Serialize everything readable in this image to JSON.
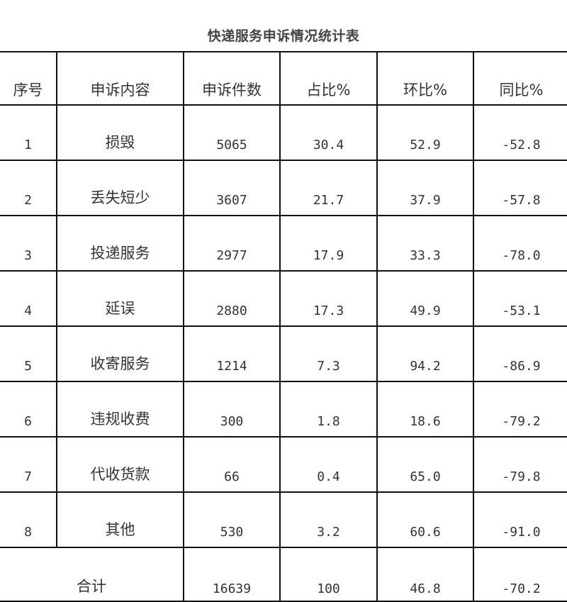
{
  "title": "快递服务申诉情况统计表",
  "headers": [
    "序号",
    "申诉内容",
    "申诉件数",
    "占比%",
    "环比%",
    "同比%"
  ],
  "rows": [
    {
      "idx": "1",
      "content": "损毁",
      "count": "5065",
      "share": "30.4",
      "mom": "52.9",
      "yoy": "-52.8"
    },
    {
      "idx": "2",
      "content": "丢失短少",
      "count": "3607",
      "share": "21.7",
      "mom": "37.9",
      "yoy": "-57.8"
    },
    {
      "idx": "3",
      "content": "投递服务",
      "count": "2977",
      "share": "17.9",
      "mom": "33.3",
      "yoy": "-78.0"
    },
    {
      "idx": "4",
      "content": "延误",
      "count": "2880",
      "share": "17.3",
      "mom": "49.9",
      "yoy": "-53.1"
    },
    {
      "idx": "5",
      "content": "收寄服务",
      "count": "1214",
      "share": "7.3",
      "mom": "94.2",
      "yoy": "-86.9"
    },
    {
      "idx": "6",
      "content": "违规收费",
      "count": "300",
      "share": "1.8",
      "mom": "18.6",
      "yoy": "-79.2"
    },
    {
      "idx": "7",
      "content": "代收货款",
      "count": "66",
      "share": "0.4",
      "mom": "65.0",
      "yoy": "-79.8"
    },
    {
      "idx": "8",
      "content": "其他",
      "count": "530",
      "share": "3.2",
      "mom": "60.6",
      "yoy": "-91.0"
    }
  ],
  "total": {
    "label": "合计",
    "count": "16639",
    "share": "100",
    "mom": "46.8",
    "yoy": "-70.2"
  }
}
